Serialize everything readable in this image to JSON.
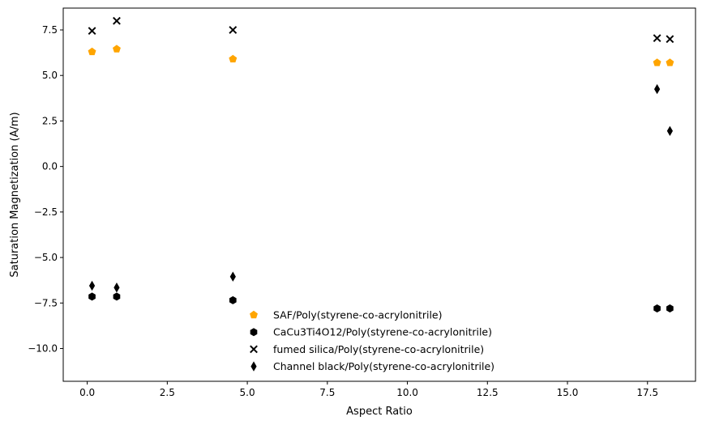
{
  "chart_data": {
    "type": "scatter",
    "title": "",
    "xlabel": "Aspect Ratio",
    "ylabel": "Saturation Magnetization (A/m)",
    "xlim": [
      -0.75,
      19.0
    ],
    "ylim": [
      -11.8,
      8.7
    ],
    "xticks": [
      0.0,
      2.5,
      5.0,
      7.5,
      10.0,
      12.5,
      15.0,
      17.5
    ],
    "xtick_labels": [
      "0.0",
      "2.5",
      "5.0",
      "7.5",
      "10.0",
      "12.5",
      "15.0",
      "17.5"
    ],
    "yticks": [
      7.5,
      5.0,
      2.5,
      0.0,
      -2.5,
      -5.0,
      -7.5,
      -10.0
    ],
    "ytick_labels": [
      "7.5",
      "5.0",
      "2.5",
      "0.0",
      "−2.5",
      "−5.0",
      "−7.5",
      "−10.0"
    ],
    "legend_position": "lower-center",
    "series": [
      {
        "name": "SAF/Poly(styrene-co-acrylonitrile)",
        "marker": "pentagon",
        "color": "#ffa500",
        "x": [
          0.15,
          0.92,
          4.55,
          17.8,
          18.2
        ],
        "y": [
          6.3,
          6.45,
          5.9,
          5.7,
          5.7
        ]
      },
      {
        "name": "CaCu3Ti4O12/Poly(styrene-co-acrylonitrile)",
        "marker": "hexagon",
        "color": "#000000",
        "x": [
          0.15,
          0.92,
          4.55,
          17.8,
          18.2
        ],
        "y": [
          -7.15,
          -7.15,
          -7.35,
          -7.8,
          -7.8
        ]
      },
      {
        "name": "fumed silica/Poly(styrene-co-acrylonitrile)",
        "marker": "x",
        "color": "#000000",
        "x": [
          0.15,
          0.92,
          4.55,
          17.8,
          18.2
        ],
        "y": [
          7.45,
          8.0,
          7.5,
          7.05,
          7.0
        ]
      },
      {
        "name": "Channel black/Poly(styrene-co-acrylonitrile)",
        "marker": "thin-diamond",
        "color": "#000000",
        "x": [
          0.15,
          0.92,
          4.55,
          17.8,
          18.2
        ],
        "y": [
          -6.55,
          -6.65,
          -6.05,
          4.25,
          1.95
        ]
      }
    ]
  }
}
